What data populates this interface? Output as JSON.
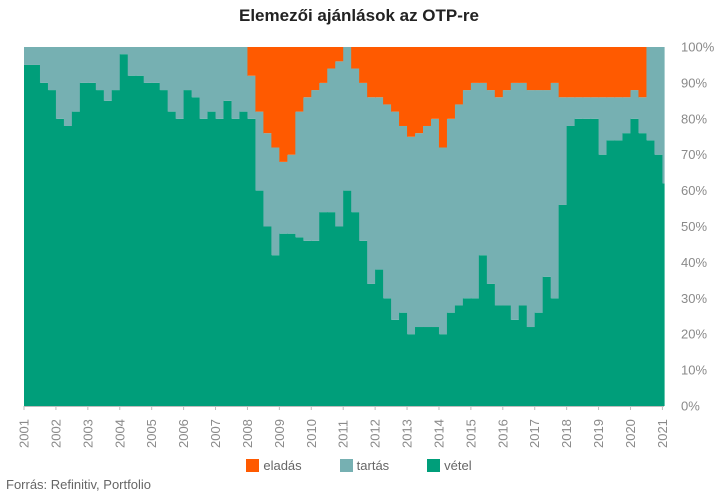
{
  "chart_data": {
    "type": "area",
    "title": "Elemezői ajánlások az OTP-re",
    "source": "Forrás: Refinitiv, Portfolio",
    "stacked": true,
    "y_unit": "%",
    "ylim": [
      0,
      100
    ],
    "y_ticks": [
      "0%",
      "10%",
      "20%",
      "30%",
      "40%",
      "50%",
      "60%",
      "70%",
      "80%",
      "90%",
      "100%"
    ],
    "y_axis_side": "right",
    "x_ticks": [
      "2001",
      "2002",
      "2003",
      "2004",
      "2005",
      "2006",
      "2007",
      "2008",
      "2009",
      "2010",
      "2011",
      "2012",
      "2013",
      "2014",
      "2015",
      "2016",
      "2017",
      "2018",
      "2019",
      "2020",
      "2021"
    ],
    "x_range": [
      2001,
      2021.05
    ],
    "legend_position": "bottom",
    "series": [
      {
        "name": "eladás",
        "color": "#ff5a00"
      },
      {
        "name": "tartás",
        "color": "#76b0b2"
      },
      {
        "name": "vétel",
        "color": "#009e7a"
      }
    ],
    "x": [
      2001.0,
      2001.5,
      2001.75,
      2002.0,
      2002.25,
      2002.5,
      2002.75,
      2003.0,
      2003.25,
      2003.5,
      2003.75,
      2004.0,
      2004.25,
      2004.5,
      2004.75,
      2005.0,
      2005.25,
      2005.5,
      2005.75,
      2006.0,
      2006.25,
      2006.5,
      2006.75,
      2007.0,
      2007.25,
      2007.5,
      2007.75,
      2008.0,
      2008.25,
      2008.5,
      2008.75,
      2009.0,
      2009.25,
      2009.5,
      2009.75,
      2010.0,
      2010.25,
      2010.5,
      2010.75,
      2011.0,
      2011.25,
      2011.5,
      2011.75,
      2012.0,
      2012.25,
      2012.5,
      2012.75,
      2013.0,
      2013.25,
      2013.5,
      2013.75,
      2014.0,
      2014.25,
      2014.5,
      2014.75,
      2015.0,
      2015.25,
      2015.5,
      2015.75,
      2016.0,
      2016.25,
      2016.5,
      2016.75,
      2017.0,
      2017.25,
      2017.5,
      2017.75,
      2018.0,
      2018.25,
      2018.5,
      2018.75,
      2019.0,
      2019.25,
      2019.5,
      2019.75,
      2020.0,
      2020.25,
      2020.5,
      2020.75,
      2021.0
    ],
    "eladas": [
      0,
      0,
      0,
      0,
      0,
      0,
      0,
      0,
      0,
      0,
      0,
      0,
      0,
      0,
      0,
      0,
      0,
      0,
      0,
      0,
      0,
      0,
      0,
      0,
      0,
      0,
      0,
      8,
      18,
      24,
      28,
      32,
      30,
      18,
      14,
      12,
      10,
      6,
      4,
      0,
      6,
      10,
      14,
      14,
      16,
      18,
      22,
      25,
      24,
      22,
      20,
      28,
      20,
      16,
      12,
      10,
      10,
      12,
      14,
      12,
      10,
      10,
      12,
      12,
      12,
      10,
      14,
      14,
      14,
      14,
      14,
      14,
      14,
      14,
      14,
      12,
      14,
      0,
      0,
      0
    ],
    "tartas": [
      5,
      10,
      12,
      20,
      22,
      18,
      10,
      10,
      12,
      15,
      12,
      2,
      8,
      8,
      10,
      10,
      12,
      18,
      20,
      12,
      14,
      20,
      18,
      20,
      15,
      20,
      18,
      12,
      22,
      26,
      30,
      20,
      22,
      35,
      40,
      42,
      36,
      40,
      46,
      40,
      40,
      44,
      52,
      48,
      54,
      58,
      52,
      55,
      54,
      56,
      58,
      52,
      54,
      56,
      58,
      60,
      48,
      54,
      58,
      60,
      66,
      62,
      66,
      62,
      52,
      60,
      30,
      8,
      6,
      6,
      6,
      16,
      12,
      12,
      10,
      8,
      10,
      26,
      30,
      38
    ],
    "vetel": [
      95,
      90,
      88,
      80,
      78,
      82,
      90,
      90,
      88,
      85,
      88,
      98,
      92,
      92,
      90,
      90,
      88,
      82,
      80,
      88,
      86,
      80,
      82,
      80,
      85,
      80,
      82,
      80,
      60,
      50,
      42,
      48,
      48,
      47,
      46,
      46,
      54,
      54,
      50,
      60,
      54,
      46,
      34,
      38,
      30,
      24,
      26,
      20,
      22,
      22,
      22,
      20,
      26,
      28,
      30,
      30,
      42,
      34,
      28,
      28,
      24,
      28,
      22,
      26,
      36,
      30,
      56,
      78,
      80,
      80,
      80,
      70,
      74,
      74,
      76,
      80,
      76,
      74,
      70,
      62
    ]
  }
}
